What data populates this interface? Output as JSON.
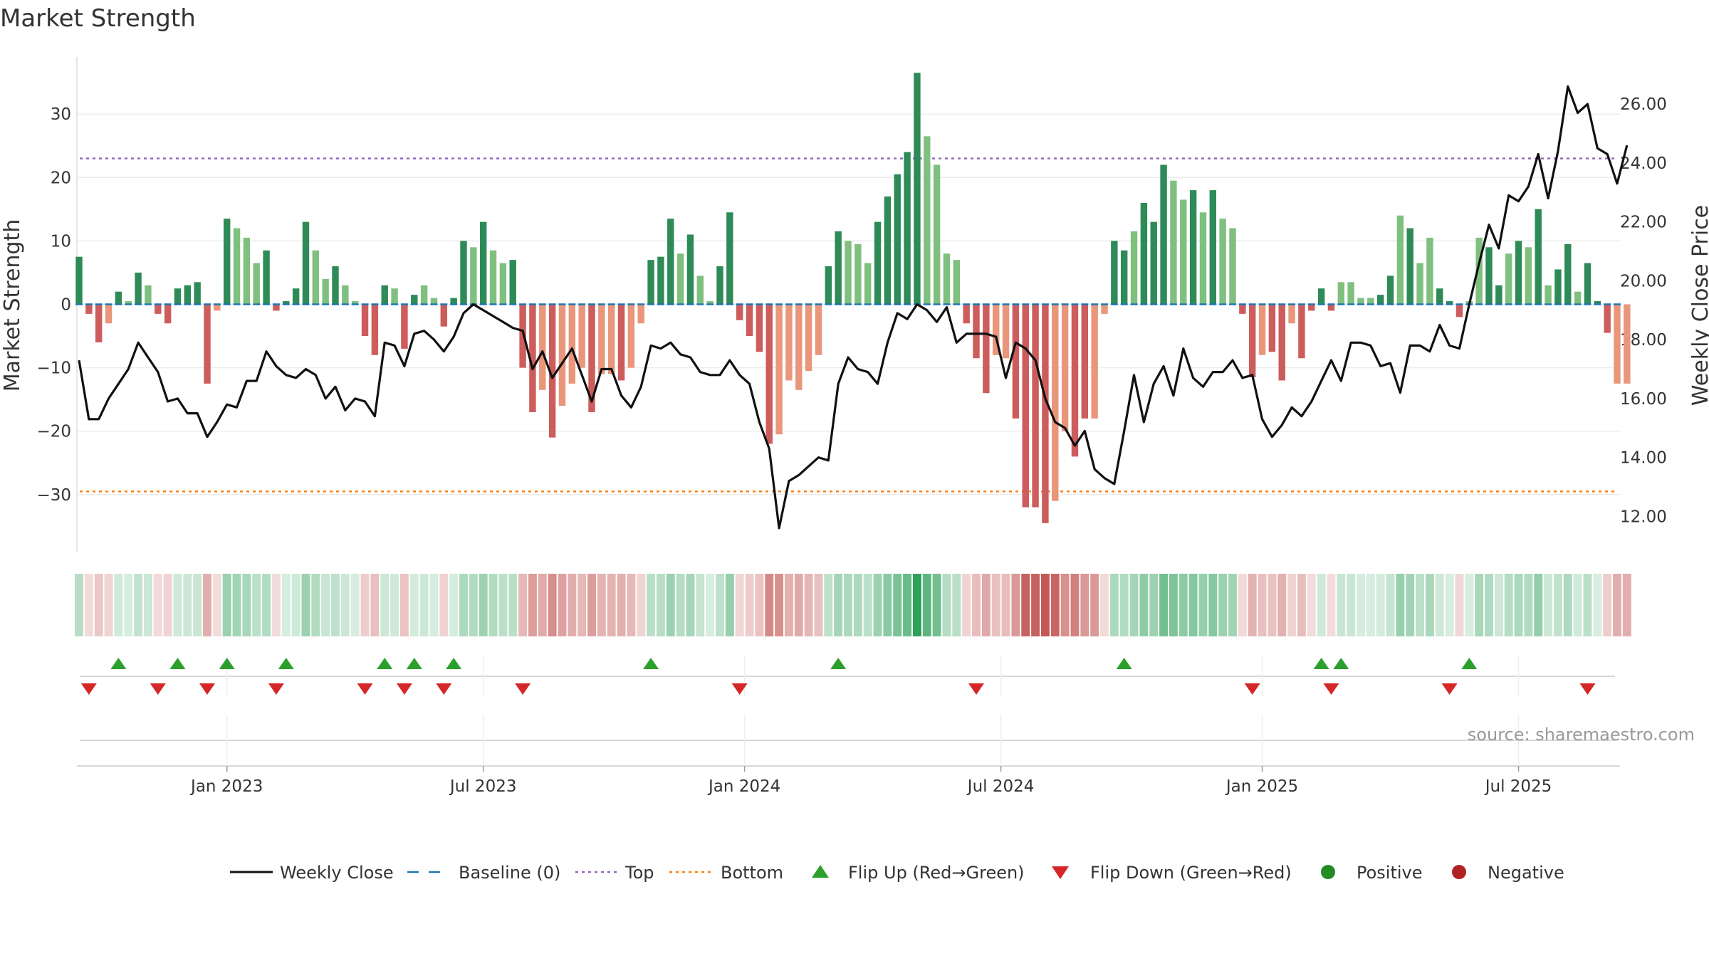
{
  "title": "Market Strength",
  "source": "source: sharemaestro.com",
  "colors": {
    "green_dark": "#2e8b57",
    "green_light": "#7fc07f",
    "red_dark": "#cd5c5c",
    "red_light": "#e9967a",
    "line": "#111111",
    "baseline": "#1f77b4",
    "top": "#9467bd",
    "bottom": "#ff7f0e",
    "flip_up": "#2ca02c",
    "flip_down": "#d62728",
    "positive": "#228b22",
    "negative": "#b22222"
  },
  "chart_data": {
    "type": "bar+line",
    "title": "Market Strength",
    "ylabel_left": "Market Strength",
    "ylabel_right": "Weekly Close Price",
    "left_ylim": [
      -39,
      39
    ],
    "right_ylim": [
      10.8,
      27.6
    ],
    "left_ticks": [
      "30",
      "20",
      "10",
      "0",
      "−10",
      "−20",
      "−30"
    ],
    "left_tick_values": [
      30,
      20,
      10,
      0,
      -10,
      -20,
      -30
    ],
    "right_ticks": [
      "26.00",
      "24.00",
      "22.00",
      "20.00",
      "18.00",
      "16.00",
      "14.00",
      "12.00"
    ],
    "right_tick_values": [
      26,
      24,
      22,
      20,
      18,
      16,
      14,
      12
    ],
    "x_ticks": [
      "Jan 2023",
      "Jul 2023",
      "Jan 2024",
      "Jul 2024",
      "Jan 2025",
      "Jul 2025"
    ],
    "x_tick_weeks": [
      15,
      41,
      67.5,
      93.5,
      120,
      146
    ],
    "top_line": 23,
    "bottom_line": -29.5,
    "baseline": 0,
    "strength": [
      7.5,
      -1.5,
      -6,
      -3,
      2,
      0.5,
      5,
      3,
      -1.5,
      -3,
      2.5,
      3,
      3.5,
      -12.5,
      -1,
      13.5,
      12,
      10.5,
      6.5,
      8.5,
      -1,
      0.5,
      2.5,
      13,
      8.5,
      4,
      6,
      3,
      0.5,
      -5,
      -8,
      3,
      2.5,
      -7,
      1.5,
      3,
      1,
      -3.5,
      1,
      10,
      9,
      13,
      8.5,
      6.5,
      7,
      -10,
      -17,
      -13.5,
      -21,
      -16,
      -12.5,
      -10,
      -17,
      -11,
      -11,
      -12,
      -10,
      -3,
      7,
      7.5,
      13.5,
      8,
      11,
      4.5,
      0.5,
      6,
      14.5,
      -2.5,
      -5,
      -7.5,
      -22,
      -20.5,
      -12,
      -13.5,
      -10.5,
      -8,
      6,
      11.5,
      10,
      9.5,
      6.5,
      13,
      17,
      20.5,
      24,
      36.5,
      26.5,
      22,
      8,
      7,
      -3,
      -8.5,
      -14,
      -8,
      -8.5,
      -18,
      -32,
      -32,
      -34.5,
      -31,
      -20,
      -24,
      -18,
      -18,
      -1.5,
      10,
      8.5,
      11.5,
      16,
      13,
      22,
      19.5,
      16.5,
      18,
      14.5,
      18,
      13.5,
      12,
      -1.5,
      -11.5,
      -8,
      -7.5,
      -12,
      -3,
      -8.5,
      -1,
      2.5,
      -1,
      3.5,
      3.5,
      1,
      1,
      1.5,
      4.5,
      14,
      12,
      6.5,
      10.5,
      2.5,
      0.5,
      -2,
      0.5,
      10.5,
      9,
      3,
      8,
      10,
      9,
      15,
      3,
      5.5,
      9.5,
      2,
      6.5,
      0.5,
      -4.5,
      -12.5,
      -12.5
    ],
    "strength_shade": [
      "d",
      "d",
      "d",
      "l",
      "d",
      "l",
      "d",
      "l",
      "d",
      "d",
      "d",
      "d",
      "d",
      "d",
      "l",
      "d",
      "l",
      "l",
      "l",
      "d",
      "d",
      "d",
      "d",
      "d",
      "l",
      "l",
      "d",
      "l",
      "l",
      "d",
      "d",
      "d",
      "l",
      "d",
      "d",
      "l",
      "l",
      "d",
      "d",
      "d",
      "l",
      "d",
      "l",
      "l",
      "d",
      "d",
      "d",
      "l",
      "d",
      "l",
      "l",
      "l",
      "d",
      "l",
      "l",
      "d",
      "l",
      "l",
      "d",
      "d",
      "d",
      "l",
      "d",
      "l",
      "l",
      "d",
      "d",
      "d",
      "d",
      "d",
      "d",
      "l",
      "l",
      "l",
      "l",
      "l",
      "d",
      "d",
      "l",
      "l",
      "l",
      "d",
      "d",
      "d",
      "d",
      "d",
      "l",
      "l",
      "l",
      "l",
      "d",
      "d",
      "d",
      "l",
      "l",
      "d",
      "d",
      "d",
      "d",
      "l",
      "l",
      "d",
      "d",
      "l",
      "l",
      "d",
      "d",
      "l",
      "d",
      "d",
      "d",
      "l",
      "l",
      "d",
      "l",
      "d",
      "l",
      "l",
      "d",
      "d",
      "l",
      "d",
      "d",
      "l",
      "d",
      "d",
      "d",
      "d",
      "l",
      "l",
      "l",
      "l",
      "d",
      "d",
      "l",
      "d",
      "l",
      "l",
      "d",
      "d",
      "d",
      "l",
      "l",
      "d",
      "d",
      "l",
      "d",
      "l",
      "d",
      "l",
      "d",
      "d",
      "l",
      "d",
      "d",
      "d"
    ],
    "weekly_close": [
      17.3,
      15.3,
      15.3,
      16,
      16.5,
      17,
      17.9,
      17.4,
      16.9,
      15.9,
      16,
      15.5,
      15.5,
      14.7,
      15.2,
      15.8,
      15.7,
      16.6,
      16.6,
      17.6,
      17.1,
      16.8,
      16.7,
      17,
      16.8,
      16,
      16.4,
      15.6,
      16,
      15.9,
      15.4,
      17.9,
      17.8,
      17.1,
      18.2,
      18.3,
      18,
      17.6,
      18.1,
      18.9,
      19.2,
      19,
      18.8,
      18.6,
      18.4,
      18.3,
      17,
      17.6,
      16.7,
      17.2,
      17.7,
      16.8,
      15.9,
      17,
      17,
      16.1,
      15.7,
      16.4,
      17.8,
      17.7,
      17.9,
      17.5,
      17.4,
      16.9,
      16.8,
      16.8,
      17.3,
      16.8,
      16.5,
      15.2,
      14.3,
      11.6,
      13.2,
      13.4,
      13.7,
      14,
      13.9,
      16.5,
      17.4,
      17,
      16.9,
      16.5,
      17.9,
      18.9,
      18.7,
      19.2,
      19,
      18.6,
      19.1,
      17.9,
      18.2,
      18.2,
      18.2,
      18.1,
      16.7,
      17.9,
      17.7,
      17.3,
      16,
      15.2,
      15,
      14.4,
      14.9,
      13.6,
      13.3,
      13.1,
      14.9,
      16.8,
      15.2,
      16.5,
      17.1,
      16.1,
      17.7,
      16.7,
      16.4,
      16.9,
      16.9,
      17.3,
      16.7,
      16.8,
      15.3,
      14.7,
      15.1,
      15.7,
      15.4,
      15.9,
      16.6,
      17.3,
      16.6,
      17.9,
      17.9,
      17.8,
      17.1,
      17.2,
      16.2,
      17.8,
      17.8,
      17.6,
      18.5,
      17.8,
      17.7,
      19.2,
      20.6,
      21.9,
      21.1,
      22.9,
      22.7,
      23.2,
      24.3,
      22.8,
      24.4,
      26.6,
      25.7,
      26,
      24.5,
      24.3,
      23.3,
      24.6
    ],
    "flip_up_weeks": [
      4,
      10,
      15,
      21,
      31,
      34,
      38,
      58,
      77,
      106,
      126,
      128,
      141
    ],
    "flip_down_weeks": [
      1,
      8,
      13,
      20,
      29,
      33,
      37,
      45,
      67,
      91,
      119,
      127,
      139,
      153
    ],
    "weeks": 157
  },
  "legend": [
    {
      "label": "Weekly Close",
      "symbol": "line"
    },
    {
      "label": "Baseline (0)",
      "symbol": "dash"
    },
    {
      "label": "Top",
      "symbol": "dot-top"
    },
    {
      "label": "Bottom",
      "symbol": "dot-bottom"
    },
    {
      "label": "Flip Up (Red→Green)",
      "symbol": "tri-up"
    },
    {
      "label": "Flip Down (Green→Red)",
      "symbol": "tri-down"
    },
    {
      "label": "Positive",
      "symbol": "circle-pos"
    },
    {
      "label": "Negative",
      "symbol": "circle-neg"
    }
  ]
}
